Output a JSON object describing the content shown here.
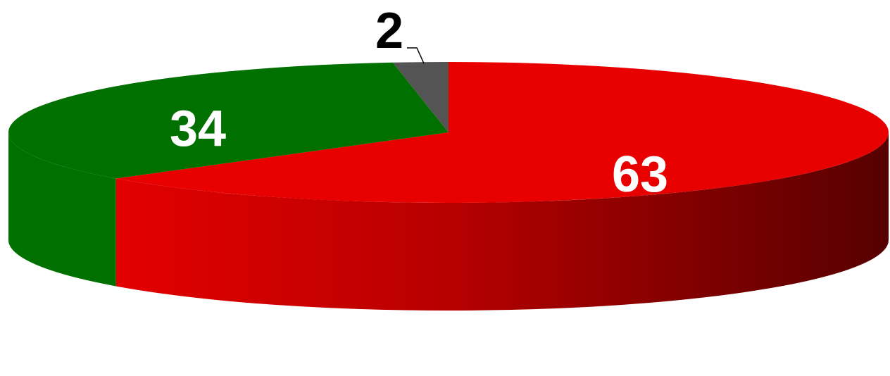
{
  "chart_data": {
    "type": "pie",
    "style": "3d",
    "start_angle_deg": -90,
    "direction": "clockwise",
    "slices": [
      {
        "value": 63,
        "label": "63",
        "color": "#E80000",
        "side_dark": "#5A0000",
        "label_color": "#FFFFFF"
      },
      {
        "value": 34,
        "label": "34",
        "color": "#007000",
        "side_dark": "#007000",
        "label_color": "#FFFFFF"
      },
      {
        "value": 2,
        "label": "2",
        "color": "#545454",
        "side_dark": "#545454",
        "label_color": "#000000"
      }
    ],
    "legend": "none"
  }
}
